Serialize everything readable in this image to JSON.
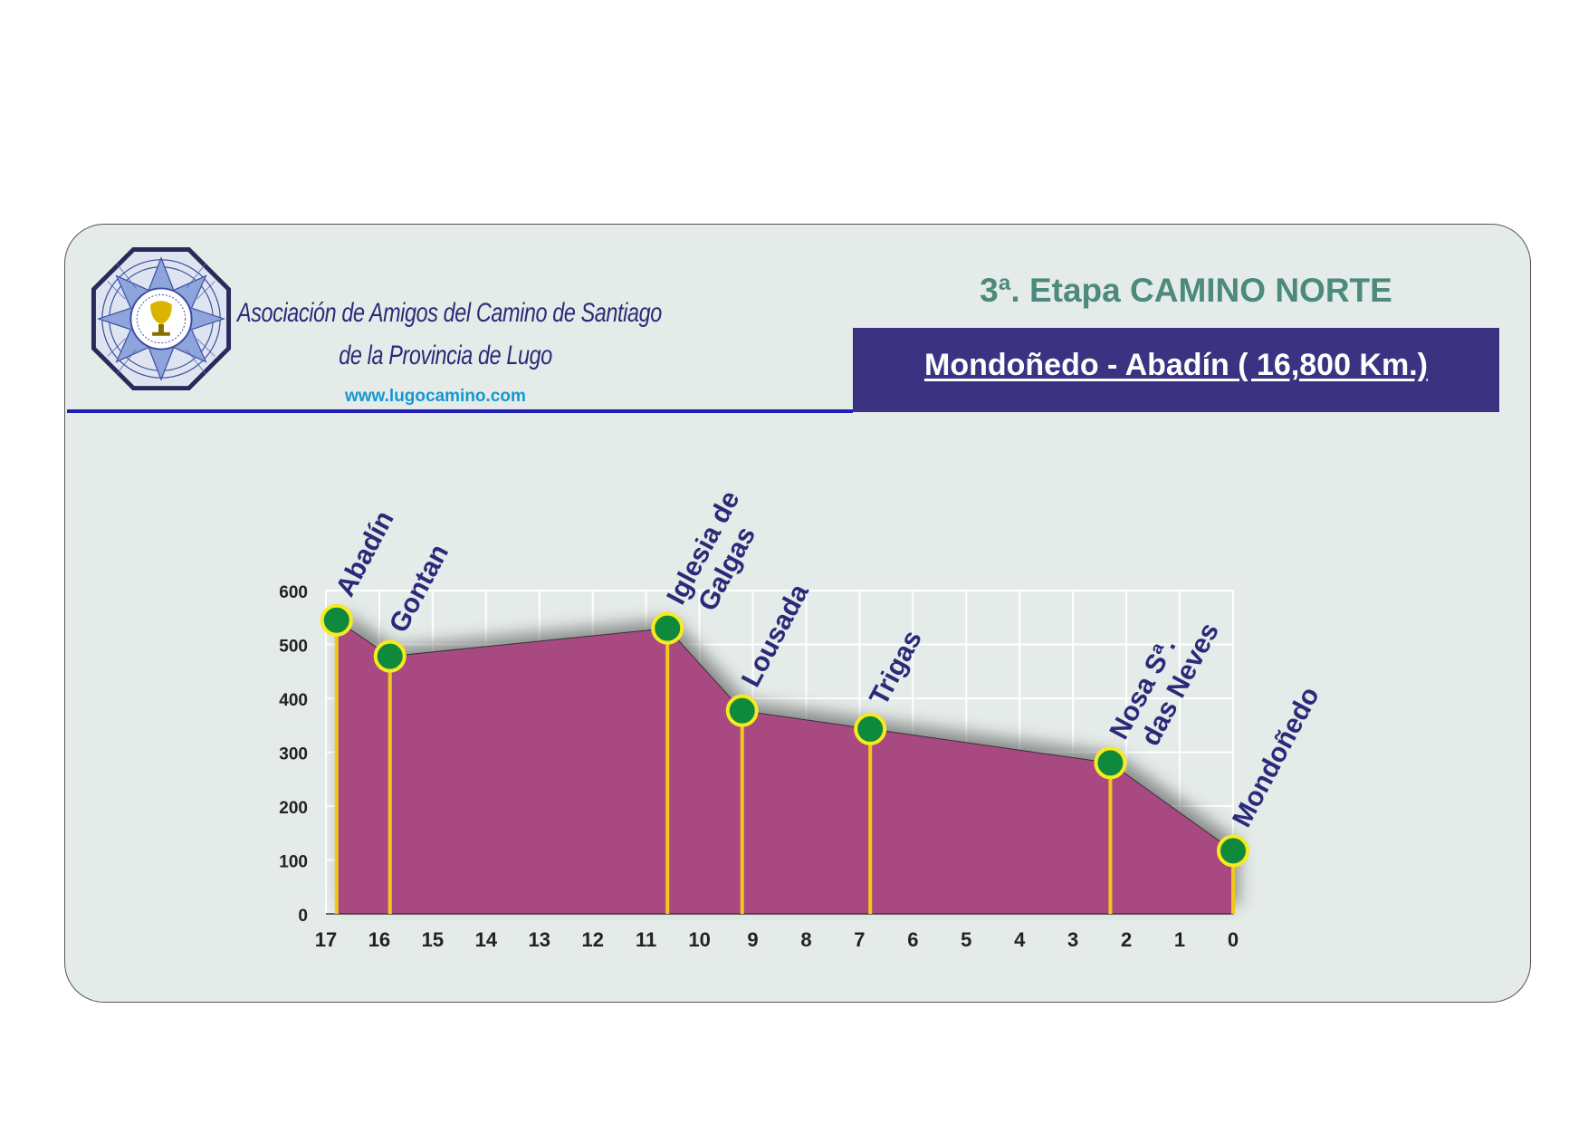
{
  "header": {
    "association_line1": "Asociación de Amigos del Camino de Santiago",
    "association_line2": "de la Provincia de Lugo",
    "url": "www.lugocamino.com",
    "stage_title": "3ª. Etapa CAMINO NORTE",
    "route": "Mondoñedo - Abadín ( 16,800 Km.)"
  },
  "colors": {
    "fill": "#a94982",
    "marker": "#0f8a3c",
    "marker_ring": "#f7ea1f",
    "pole": "#f2c81a",
    "label": "#2b2a7a",
    "header_bar": "#3b3382"
  },
  "chart_data": {
    "type": "area",
    "title": "",
    "xlabel": "",
    "ylabel": "",
    "xlim": [
      17,
      0
    ],
    "ylim": [
      0,
      600
    ],
    "x_ticks": [
      "17",
      "16",
      "15",
      "14",
      "13",
      "12",
      "11",
      "10",
      "9",
      "8",
      "7",
      "6",
      "5",
      "4",
      "3",
      "2",
      "1",
      "0"
    ],
    "y_ticks": [
      "0",
      "100",
      "200",
      "300",
      "400",
      "500",
      "600"
    ],
    "grid": true,
    "points": [
      {
        "x": 16.8,
        "y": 545,
        "label": [
          "Abadín"
        ]
      },
      {
        "x": 15.8,
        "y": 478,
        "label": [
          "Gontan"
        ]
      },
      {
        "x": 10.6,
        "y": 530,
        "label": [
          "Iglesia de",
          "Galgas"
        ]
      },
      {
        "x": 9.2,
        "y": 377,
        "label": [
          "Lousada"
        ]
      },
      {
        "x": 6.8,
        "y": 343,
        "label": [
          "Trigas"
        ]
      },
      {
        "x": 2.3,
        "y": 280,
        "label": [
          "Nosa Sª.",
          "das Neves"
        ]
      },
      {
        "x": 0.0,
        "y": 117,
        "label": [
          "Mondoñedo"
        ]
      }
    ]
  }
}
